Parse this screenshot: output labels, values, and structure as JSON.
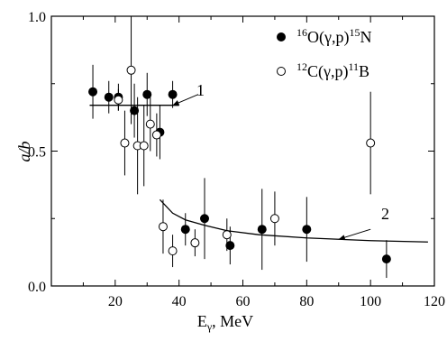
{
  "chart_data": {
    "type": "scatter",
    "xlabel": "E",
    "xlabel_sub": "γ",
    "xlabel_unit": ", MeV",
    "ylabel": "a/b",
    "xlim": [
      0,
      120
    ],
    "ylim": [
      0.0,
      1.0
    ],
    "xticks": [
      "20",
      "40",
      "60",
      "80",
      "100",
      "120"
    ],
    "yticks": [
      "0.0",
      "0.5",
      "1.0"
    ],
    "grid": false,
    "legend_position": "top-right",
    "series": [
      {
        "marker": "filled-circle",
        "legend": {
          "pre_sup": "16",
          "base": "O(γ,p)",
          "post_sup": "15",
          "tail": "N"
        },
        "points": [
          {
            "x": 13,
            "y": 0.72,
            "err": 0.1
          },
          {
            "x": 18,
            "y": 0.7,
            "err": 0.06
          },
          {
            "x": 21,
            "y": 0.7,
            "err": 0.05
          },
          {
            "x": 26,
            "y": 0.65,
            "err": 0.1
          },
          {
            "x": 30,
            "y": 0.71,
            "err": 0.08
          },
          {
            "x": 34,
            "y": 0.57,
            "err": 0.1
          },
          {
            "x": 38,
            "y": 0.71,
            "err": 0.05
          },
          {
            "x": 42,
            "y": 0.21,
            "err": 0.06
          },
          {
            "x": 48,
            "y": 0.25,
            "err": 0.15
          },
          {
            "x": 56,
            "y": 0.15,
            "err": 0.07
          },
          {
            "x": 66,
            "y": 0.21,
            "err": 0.15
          },
          {
            "x": 80,
            "y": 0.21,
            "err": 0.12
          },
          {
            "x": 105,
            "y": 0.1,
            "err": 0.07
          }
        ]
      },
      {
        "marker": "open-circle",
        "legend": {
          "pre_sup": "12",
          "base": "C(γ,p)",
          "post_sup": "11",
          "tail": "B"
        },
        "points": [
          {
            "x": 21,
            "y": 0.69,
            "err": 0.04
          },
          {
            "x": 23,
            "y": 0.53,
            "err": 0.12
          },
          {
            "x": 25,
            "y": 0.8,
            "err": 0.2
          },
          {
            "x": 27,
            "y": 0.52,
            "err": 0.18
          },
          {
            "x": 29,
            "y": 0.52,
            "err": 0.15
          },
          {
            "x": 31,
            "y": 0.6,
            "err": 0.1
          },
          {
            "x": 33,
            "y": 0.56,
            "err": 0.08
          },
          {
            "x": 35,
            "y": 0.22,
            "err": 0.1
          },
          {
            "x": 38,
            "y": 0.13,
            "err": 0.06
          },
          {
            "x": 45,
            "y": 0.16,
            "err": 0.05
          },
          {
            "x": 55,
            "y": 0.19,
            "err": 0.06
          },
          {
            "x": 70,
            "y": 0.25,
            "err": 0.1
          },
          {
            "x": 100,
            "y": 0.53,
            "err": 0.19
          }
        ]
      }
    ],
    "fit_lines": [
      {
        "label": "1",
        "points": [
          [
            12,
            0.67
          ],
          [
            40,
            0.67
          ]
        ]
      },
      {
        "label": "2",
        "points": [
          [
            34,
            0.32
          ],
          [
            38,
            0.27
          ],
          [
            42,
            0.245
          ],
          [
            48,
            0.225
          ],
          [
            55,
            0.205
          ],
          [
            65,
            0.19
          ],
          [
            80,
            0.178
          ],
          [
            100,
            0.168
          ],
          [
            118,
            0.163
          ]
        ]
      }
    ]
  }
}
